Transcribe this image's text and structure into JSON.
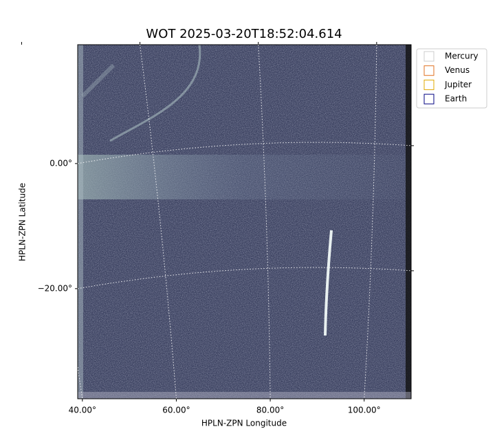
{
  "chart_data": {
    "type": "image",
    "title": "WOT 2025-03-20T18:52:04.614",
    "x_label": "HPLN-ZPN Longitude",
    "y_label": "HPLN-ZPN Latitude",
    "xlim": [
      39,
      110
    ],
    "ylim": [
      -37.6,
      19
    ],
    "xticks": [
      {
        "value": 40,
        "label": "40.00°"
      },
      {
        "value": 60,
        "label": "60.00°"
      },
      {
        "value": 80,
        "label": "80.00°"
      },
      {
        "value": 100,
        "label": "100.00°"
      }
    ],
    "yticks": [
      {
        "value": 0,
        "label": "0.00°"
      },
      {
        "value": -20,
        "label": "−20.00°"
      }
    ],
    "grid": true,
    "legend": "upper right",
    "series": [
      {
        "name": "Mercury",
        "color": "#cccccc"
      },
      {
        "name": "Venus",
        "color": "#e07020"
      },
      {
        "name": "Jupiter",
        "color": "#e0a800"
      },
      {
        "name": "Earth",
        "color": "#000080"
      }
    ]
  }
}
